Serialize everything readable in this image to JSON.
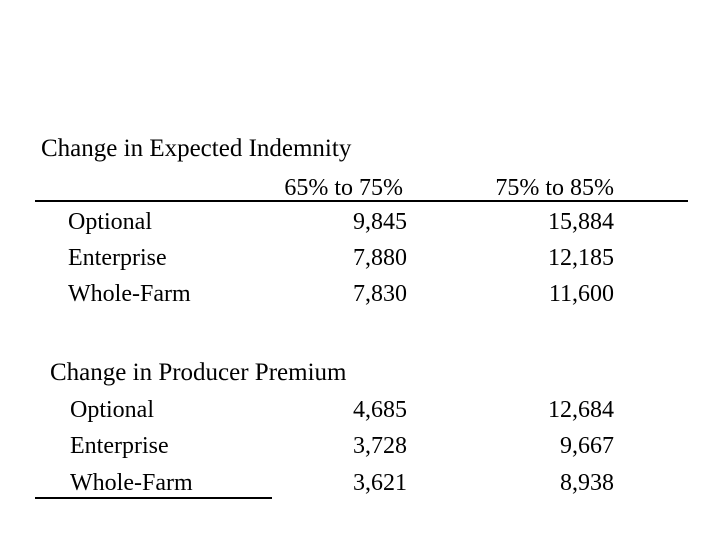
{
  "slide": {
    "background_color": "#ffffff",
    "text_color": "#000000"
  },
  "table": {
    "column_headers": [
      "65% to 75%",
      "75% to 85%"
    ],
    "sections": [
      {
        "title": "Change in Expected Indemnity",
        "rows": [
          {
            "label": "Optional",
            "col1": "9,845",
            "col2": "15,884"
          },
          {
            "label": "Enterprise",
            "col1": "7,880",
            "col2": "12,185"
          },
          {
            "label": "Whole-Farm",
            "col1": "7,830",
            "col2": "11,600"
          }
        ]
      },
      {
        "title": "Change in Producer Premium",
        "rows": [
          {
            "label": "Optional",
            "col1": "4,685",
            "col2": "12,684"
          },
          {
            "label": "Enterprise",
            "col1": "3,728",
            "col2": "9,667"
          },
          {
            "label": "Whole-Farm",
            "col1": "3,621",
            "col2": "8,938"
          }
        ]
      }
    ]
  },
  "chart_data": {
    "type": "table",
    "title": "",
    "column_headers": [
      "",
      "65% to 75%",
      "75% to 85%"
    ],
    "groups": [
      {
        "name": "Change in Expected Indemnity",
        "rows": [
          [
            "Optional",
            9845,
            15884
          ],
          [
            "Enterprise",
            7880,
            12185
          ],
          [
            "Whole-Farm",
            7830,
            11600
          ]
        ]
      },
      {
        "name": "Change in Producer Premium",
        "rows": [
          [
            "Optional",
            4685,
            12684
          ],
          [
            "Enterprise",
            3728,
            9667
          ],
          [
            "Whole-Farm",
            3621,
            8938
          ]
        ]
      }
    ]
  }
}
